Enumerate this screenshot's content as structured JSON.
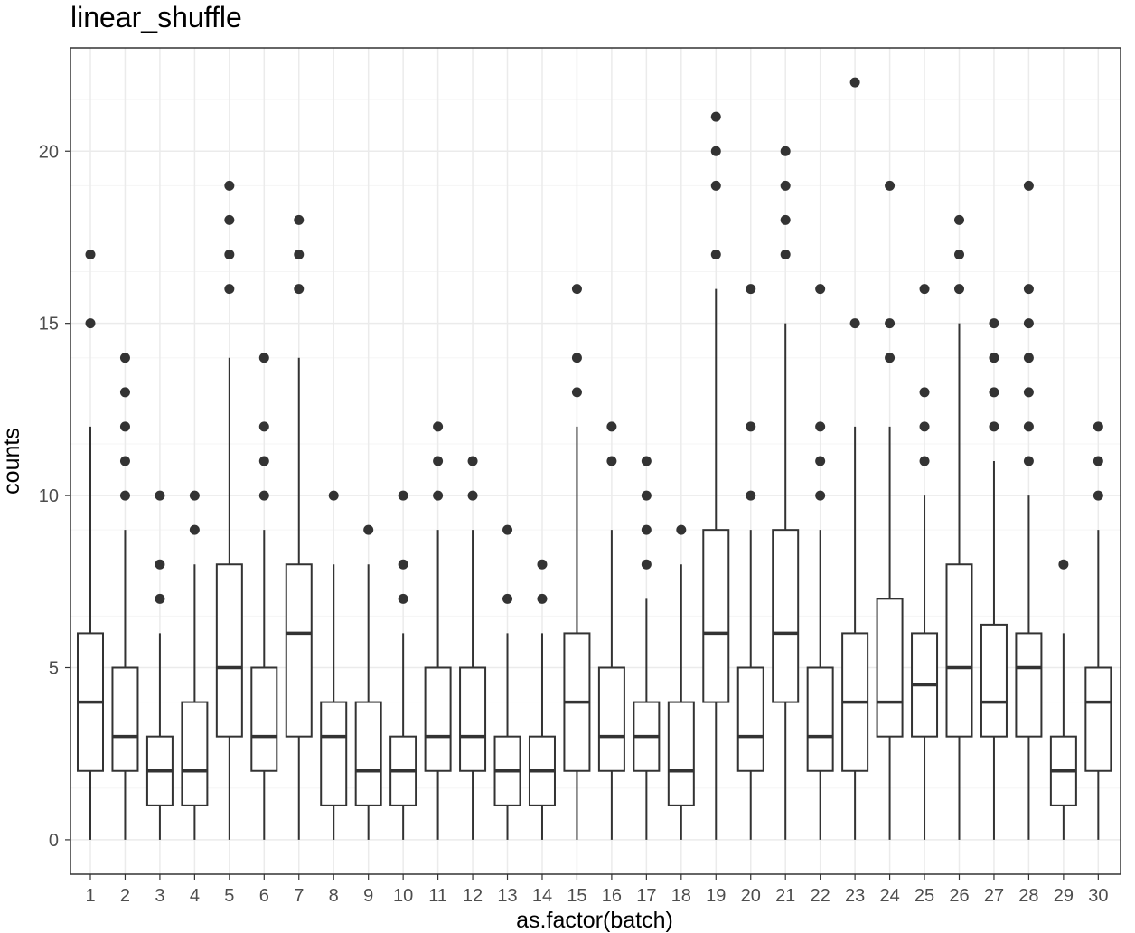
{
  "chart_data": {
    "type": "boxplot",
    "title": "linear_shuffle",
    "xlabel": "as.factor(batch)",
    "ylabel": "counts",
    "ylim": [
      -1,
      23
    ],
    "y_ticks": [
      0,
      5,
      10,
      15,
      20
    ],
    "grid": true,
    "categories": [
      "1",
      "2",
      "3",
      "4",
      "5",
      "6",
      "7",
      "8",
      "9",
      "10",
      "11",
      "12",
      "13",
      "14",
      "15",
      "16",
      "17",
      "18",
      "19",
      "20",
      "21",
      "22",
      "23",
      "24",
      "25",
      "26",
      "27",
      "28",
      "29",
      "30"
    ],
    "boxes": [
      {
        "category": "1",
        "lower": 0,
        "q1": 2,
        "median": 4,
        "q3": 6,
        "upper": 12,
        "outliers": [
          15,
          17
        ]
      },
      {
        "category": "2",
        "lower": 0,
        "q1": 2,
        "median": 3,
        "q3": 5,
        "upper": 9,
        "outliers": [
          10,
          11,
          12,
          13,
          14
        ]
      },
      {
        "category": "3",
        "lower": 0,
        "q1": 1,
        "median": 2,
        "q3": 3,
        "upper": 6,
        "outliers": [
          7,
          8,
          10
        ]
      },
      {
        "category": "4",
        "lower": 0,
        "q1": 1,
        "median": 2,
        "q3": 4,
        "upper": 8,
        "outliers": [
          9,
          10
        ]
      },
      {
        "category": "5",
        "lower": 0,
        "q1": 3,
        "median": 5,
        "q3": 8,
        "upper": 14,
        "outliers": [
          16,
          17,
          18,
          19
        ]
      },
      {
        "category": "6",
        "lower": 0,
        "q1": 2,
        "median": 3,
        "q3": 5,
        "upper": 9,
        "outliers": [
          10,
          11,
          12,
          14
        ]
      },
      {
        "category": "7",
        "lower": 0,
        "q1": 3,
        "median": 6,
        "q3": 8,
        "upper": 14,
        "outliers": [
          16,
          17,
          18
        ]
      },
      {
        "category": "8",
        "lower": 0,
        "q1": 1,
        "median": 3,
        "q3": 4,
        "upper": 8,
        "outliers": [
          10
        ]
      },
      {
        "category": "9",
        "lower": 0,
        "q1": 1,
        "median": 2,
        "q3": 4,
        "upper": 8,
        "outliers": [
          9
        ]
      },
      {
        "category": "10",
        "lower": 0,
        "q1": 1,
        "median": 2,
        "q3": 3,
        "upper": 6,
        "outliers": [
          7,
          8,
          10
        ]
      },
      {
        "category": "11",
        "lower": 0,
        "q1": 2,
        "median": 3,
        "q3": 5,
        "upper": 9,
        "outliers": [
          10,
          11,
          12
        ]
      },
      {
        "category": "12",
        "lower": 0,
        "q1": 2,
        "median": 3,
        "q3": 5,
        "upper": 9,
        "outliers": [
          10,
          11
        ]
      },
      {
        "category": "13",
        "lower": 0,
        "q1": 1,
        "median": 2,
        "q3": 3,
        "upper": 6,
        "outliers": [
          7,
          9
        ]
      },
      {
        "category": "14",
        "lower": 0,
        "q1": 1,
        "median": 2,
        "q3": 3,
        "upper": 6,
        "outliers": [
          7,
          8
        ]
      },
      {
        "category": "15",
        "lower": 0,
        "q1": 2,
        "median": 4,
        "q3": 6,
        "upper": 12,
        "outliers": [
          13,
          14,
          16
        ]
      },
      {
        "category": "16",
        "lower": 0,
        "q1": 2,
        "median": 3,
        "q3": 5,
        "upper": 9,
        "outliers": [
          11,
          12
        ]
      },
      {
        "category": "17",
        "lower": 0,
        "q1": 2,
        "median": 3,
        "q3": 4,
        "upper": 7,
        "outliers": [
          8,
          9,
          10,
          11
        ]
      },
      {
        "category": "18",
        "lower": 0,
        "q1": 1,
        "median": 2,
        "q3": 4,
        "upper": 8,
        "outliers": [
          9
        ]
      },
      {
        "category": "19",
        "lower": 0,
        "q1": 4,
        "median": 6,
        "q3": 9,
        "upper": 16,
        "outliers": [
          17,
          19,
          20,
          21
        ]
      },
      {
        "category": "20",
        "lower": 0,
        "q1": 2,
        "median": 3,
        "q3": 5,
        "upper": 9,
        "outliers": [
          10,
          12,
          16
        ]
      },
      {
        "category": "21",
        "lower": 0,
        "q1": 4,
        "median": 6,
        "q3": 9,
        "upper": 15,
        "outliers": [
          17,
          18,
          19,
          20
        ]
      },
      {
        "category": "22",
        "lower": 0,
        "q1": 2,
        "median": 3,
        "q3": 5,
        "upper": 9,
        "outliers": [
          10,
          11,
          12,
          16
        ]
      },
      {
        "category": "23",
        "lower": 0,
        "q1": 2,
        "median": 4,
        "q3": 6,
        "upper": 12,
        "outliers": [
          15,
          22
        ]
      },
      {
        "category": "24",
        "lower": 0,
        "q1": 3,
        "median": 4,
        "q3": 7,
        "upper": 12,
        "outliers": [
          14,
          15,
          19
        ]
      },
      {
        "category": "25",
        "lower": 0,
        "q1": 3,
        "median": 4.5,
        "q3": 6,
        "upper": 10,
        "outliers": [
          11,
          12,
          13,
          16
        ]
      },
      {
        "category": "26",
        "lower": 0,
        "q1": 3,
        "median": 5,
        "q3": 8,
        "upper": 15,
        "outliers": [
          16,
          17,
          18
        ]
      },
      {
        "category": "27",
        "lower": 0,
        "q1": 3,
        "median": 4,
        "q3": 6.25,
        "upper": 11,
        "outliers": [
          12,
          13,
          14,
          15
        ]
      },
      {
        "category": "28",
        "lower": 0,
        "q1": 3,
        "median": 5,
        "q3": 6,
        "upper": 10,
        "outliers": [
          11,
          12,
          13,
          14,
          15,
          16,
          19
        ]
      },
      {
        "category": "29",
        "lower": 0,
        "q1": 1,
        "median": 2,
        "q3": 3,
        "upper": 6,
        "outliers": [
          8
        ]
      },
      {
        "category": "30",
        "lower": 0,
        "q1": 2,
        "median": 4,
        "q3": 5,
        "upper": 9,
        "outliers": [
          10,
          11,
          12
        ]
      }
    ],
    "colors": {
      "panel_border": "#333333",
      "grid_major": "#ebebeb",
      "grid_minor": "#f5f5f5",
      "box_stroke": "#333333",
      "box_fill": "#ffffff",
      "outlier_fill": "#333333",
      "tick_label": "#4d4d4d"
    }
  }
}
